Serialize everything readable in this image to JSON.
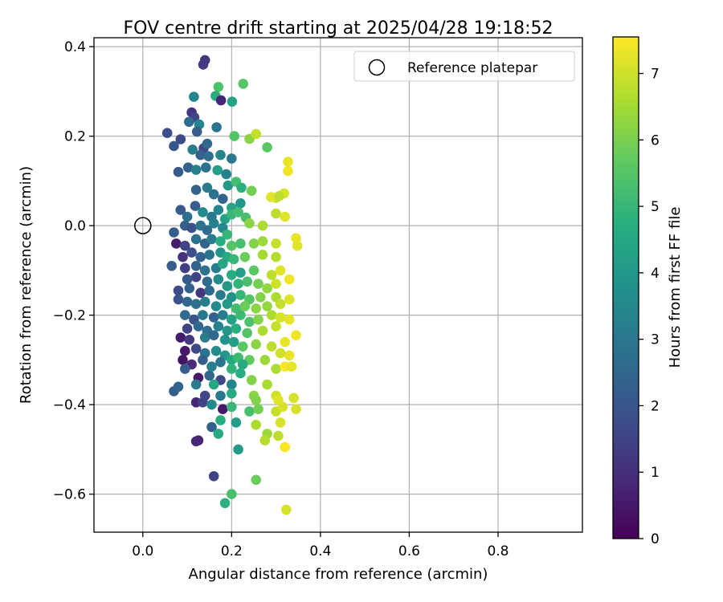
{
  "chart_data": {
    "type": "scatter",
    "title": "FOV centre drift starting at 2025/04/28 19:18:52",
    "xlabel": "Angular distance from reference (arcmin)",
    "ylabel": "Rotation from reference (arcmin)",
    "xlim": [
      -0.11,
      0.99
    ],
    "ylim": [
      -0.685,
      0.42
    ],
    "xticks": [
      0.0,
      0.2,
      0.4,
      0.6,
      0.8
    ],
    "xtick_labels": [
      "0.0",
      "0.2",
      "0.4",
      "0.6",
      "0.8"
    ],
    "yticks": [
      0.4,
      0.2,
      0.0,
      -0.2,
      -0.4,
      -0.6
    ],
    "ytick_labels": [
      "0.4",
      "0.2",
      "0.0",
      "−0.2",
      "−0.4",
      "−0.6"
    ],
    "grid": true,
    "legend": {
      "position": "top-right",
      "entries": [
        "Reference platepar"
      ]
    },
    "reference_point": {
      "x": 0.0,
      "y": 0.0,
      "label": "Reference platepar"
    },
    "colorbar": {
      "label": "Hours from first FF file",
      "colormap": "viridis",
      "range": [
        0,
        7.55
      ],
      "ticks": [
        0,
        1,
        2,
        3,
        4,
        5,
        6,
        7
      ],
      "tick_labels": [
        "0",
        "1",
        "2",
        "3",
        "4",
        "5",
        "6",
        "7"
      ]
    },
    "points": [
      [
        0.14,
        0.37,
        1.2
      ],
      [
        0.136,
        0.36,
        1.3
      ],
      [
        0.17,
        0.31,
        5.4
      ],
      [
        0.164,
        0.29,
        4.7
      ],
      [
        0.176,
        0.28,
        0.8
      ],
      [
        0.201,
        0.277,
        4.3
      ],
      [
        0.226,
        0.317,
        5.5
      ],
      [
        0.115,
        0.288,
        3.4
      ],
      [
        0.11,
        0.253,
        1.1
      ],
      [
        0.116,
        0.242,
        1.6
      ],
      [
        0.104,
        0.232,
        2.6
      ],
      [
        0.127,
        0.226,
        3.4
      ],
      [
        0.166,
        0.22,
        2.9
      ],
      [
        0.055,
        0.207,
        1.8
      ],
      [
        0.122,
        0.21,
        2.2
      ],
      [
        0.085,
        0.193,
        1.7
      ],
      [
        0.07,
        0.178,
        2.0
      ],
      [
        0.112,
        0.17,
        3.2
      ],
      [
        0.137,
        0.173,
        1.6
      ],
      [
        0.145,
        0.183,
        2.5
      ],
      [
        0.206,
        0.2,
        5.5
      ],
      [
        0.24,
        0.194,
        6.2
      ],
      [
        0.255,
        0.205,
        6.9
      ],
      [
        0.28,
        0.175,
        5.6
      ],
      [
        0.13,
        0.158,
        2.3
      ],
      [
        0.148,
        0.155,
        2.7
      ],
      [
        0.175,
        0.158,
        3.4
      ],
      [
        0.2,
        0.15,
        3.0
      ],
      [
        0.327,
        0.143,
        7.3
      ],
      [
        0.327,
        0.122,
        7.4
      ],
      [
        0.08,
        0.12,
        2.1
      ],
      [
        0.102,
        0.13,
        2.3
      ],
      [
        0.12,
        0.125,
        3.3
      ],
      [
        0.142,
        0.13,
        2.8
      ],
      [
        0.168,
        0.124,
        4.2
      ],
      [
        0.188,
        0.115,
        3.3
      ],
      [
        0.192,
        0.09,
        4.0
      ],
      [
        0.21,
        0.098,
        5.2
      ],
      [
        0.222,
        0.085,
        4.8
      ],
      [
        0.245,
        0.078,
        5.9
      ],
      [
        0.3,
        0.062,
        6.9
      ],
      [
        0.318,
        0.072,
        7.1
      ],
      [
        0.289,
        0.064,
        7.2
      ],
      [
        0.307,
        0.066,
        6.8
      ],
      [
        0.12,
        0.08,
        2.4
      ],
      [
        0.145,
        0.085,
        3.1
      ],
      [
        0.16,
        0.07,
        2.8
      ],
      [
        0.18,
        0.06,
        2.5
      ],
      [
        0.2,
        0.04,
        4.4
      ],
      [
        0.22,
        0.05,
        3.9
      ],
      [
        0.085,
        0.035,
        2.1
      ],
      [
        0.1,
        0.02,
        2.7
      ],
      [
        0.118,
        0.044,
        2.2
      ],
      [
        0.135,
        0.03,
        3.6
      ],
      [
        0.155,
        0.02,
        3.0
      ],
      [
        0.17,
        0.035,
        3.4
      ],
      [
        0.185,
        0.015,
        4.3
      ],
      [
        0.2,
        0.025,
        5.0
      ],
      [
        0.215,
        0.03,
        5.2
      ],
      [
        0.232,
        0.018,
        5.3
      ],
      [
        0.3,
        0.027,
        6.8
      ],
      [
        0.32,
        0.02,
        7.2
      ],
      [
        0.095,
        0.0,
        2.3
      ],
      [
        0.11,
        -0.005,
        1.9
      ],
      [
        0.13,
        0.0,
        2.9
      ],
      [
        0.145,
        -0.01,
        2.6
      ],
      [
        0.16,
        0.005,
        3.3
      ],
      [
        0.18,
        -0.005,
        3.5
      ],
      [
        0.24,
        0.005,
        6.2
      ],
      [
        0.27,
        0.0,
        6.6
      ],
      [
        0.07,
        -0.015,
        2.2
      ],
      [
        0.075,
        -0.04,
        0.6
      ],
      [
        0.095,
        -0.045,
        1.5
      ],
      [
        0.12,
        -0.03,
        2.8
      ],
      [
        0.14,
        -0.04,
        2.4
      ],
      [
        0.155,
        -0.03,
        3.1
      ],
      [
        0.175,
        -0.035,
        4.7
      ],
      [
        0.19,
        -0.02,
        5.0
      ],
      [
        0.2,
        -0.045,
        5.5
      ],
      [
        0.22,
        -0.04,
        5.3
      ],
      [
        0.25,
        -0.04,
        6.1
      ],
      [
        0.27,
        -0.035,
        6.4
      ],
      [
        0.3,
        -0.04,
        6.9
      ],
      [
        0.345,
        -0.028,
        7.3
      ],
      [
        0.348,
        -0.045,
        7.2
      ],
      [
        0.09,
        -0.07,
        1.1
      ],
      [
        0.11,
        -0.06,
        1.8
      ],
      [
        0.13,
        -0.07,
        2.4
      ],
      [
        0.15,
        -0.065,
        2.9
      ],
      [
        0.175,
        -0.06,
        3.9
      ],
      [
        0.19,
        -0.07,
        4.6
      ],
      [
        0.205,
        -0.075,
        5.0
      ],
      [
        0.23,
        -0.07,
        5.8
      ],
      [
        0.27,
        -0.065,
        6.5
      ],
      [
        0.3,
        -0.07,
        6.7
      ],
      [
        0.065,
        -0.09,
        2.2
      ],
      [
        0.095,
        -0.095,
        1.4
      ],
      [
        0.12,
        -0.09,
        2.4
      ],
      [
        0.14,
        -0.1,
        2.8
      ],
      [
        0.165,
        -0.095,
        3.2
      ],
      [
        0.18,
        -0.085,
        4.4
      ],
      [
        0.2,
        -0.11,
        4.7
      ],
      [
        0.22,
        -0.105,
        4.2
      ],
      [
        0.25,
        -0.1,
        5.6
      ],
      [
        0.29,
        -0.11,
        6.8
      ],
      [
        0.31,
        -0.1,
        7.2
      ],
      [
        0.33,
        -0.12,
        7.4
      ],
      [
        0.1,
        -0.12,
        2.1
      ],
      [
        0.12,
        -0.115,
        1.5
      ],
      [
        0.145,
        -0.125,
        2.6
      ],
      [
        0.17,
        -0.12,
        3.6
      ],
      [
        0.19,
        -0.135,
        4.0
      ],
      [
        0.215,
        -0.13,
        4.9
      ],
      [
        0.235,
        -0.125,
        5.3
      ],
      [
        0.26,
        -0.13,
        5.9
      ],
      [
        0.28,
        -0.14,
        6.3
      ],
      [
        0.3,
        -0.13,
        7.0
      ],
      [
        0.08,
        -0.145,
        1.7
      ],
      [
        0.105,
        -0.14,
        2.3
      ],
      [
        0.13,
        -0.15,
        1.2
      ],
      [
        0.15,
        -0.145,
        2.6
      ],
      [
        0.175,
        -0.155,
        3.1
      ],
      [
        0.2,
        -0.16,
        3.8
      ],
      [
        0.22,
        -0.155,
        5.0
      ],
      [
        0.24,
        -0.165,
        5.5
      ],
      [
        0.265,
        -0.16,
        6.1
      ],
      [
        0.3,
        -0.16,
        6.6
      ],
      [
        0.33,
        -0.165,
        7.2
      ],
      [
        0.08,
        -0.165,
        1.9
      ],
      [
        0.1,
        -0.17,
        2.5
      ],
      [
        0.12,
        -0.175,
        2.8
      ],
      [
        0.14,
        -0.17,
        3.2
      ],
      [
        0.165,
        -0.18,
        3.5
      ],
      [
        0.19,
        -0.175,
        4.1
      ],
      [
        0.21,
        -0.185,
        5.2
      ],
      [
        0.23,
        -0.18,
        5.8
      ],
      [
        0.255,
        -0.185,
        6.2
      ],
      [
        0.28,
        -0.18,
        6.3
      ],
      [
        0.31,
        -0.175,
        6.9
      ],
      [
        0.095,
        -0.2,
        2.6
      ],
      [
        0.115,
        -0.21,
        1.9
      ],
      [
        0.135,
        -0.2,
        3.0
      ],
      [
        0.16,
        -0.205,
        2.4
      ],
      [
        0.18,
        -0.2,
        3.2
      ],
      [
        0.2,
        -0.21,
        4.3
      ],
      [
        0.22,
        -0.2,
        5.1
      ],
      [
        0.24,
        -0.215,
        5.4
      ],
      [
        0.26,
        -0.21,
        6.1
      ],
      [
        0.29,
        -0.2,
        6.6
      ],
      [
        0.31,
        -0.205,
        7.1
      ],
      [
        0.33,
        -0.21,
        7.3
      ],
      [
        0.1,
        -0.23,
        1.5
      ],
      [
        0.125,
        -0.225,
        2.5
      ],
      [
        0.145,
        -0.235,
        2.7
      ],
      [
        0.17,
        -0.225,
        3.3
      ],
      [
        0.19,
        -0.235,
        4.0
      ],
      [
        0.21,
        -0.23,
        4.7
      ],
      [
        0.235,
        -0.24,
        5.5
      ],
      [
        0.27,
        -0.235,
        6.6
      ],
      [
        0.3,
        -0.225,
        6.9
      ],
      [
        0.345,
        -0.245,
        7.4
      ],
      [
        0.085,
        -0.25,
        0.6
      ],
      [
        0.105,
        -0.255,
        1.2
      ],
      [
        0.14,
        -0.25,
        3.1
      ],
      [
        0.16,
        -0.245,
        2.5
      ],
      [
        0.185,
        -0.255,
        3.8
      ],
      [
        0.205,
        -0.26,
        4.2
      ],
      [
        0.225,
        -0.27,
        5.6
      ],
      [
        0.255,
        -0.265,
        6.2
      ],
      [
        0.29,
        -0.27,
        6.8
      ],
      [
        0.32,
        -0.26,
        7.3
      ],
      [
        0.095,
        -0.28,
        0.5
      ],
      [
        0.12,
        -0.275,
        1.6
      ],
      [
        0.14,
        -0.285,
        2.9
      ],
      [
        0.165,
        -0.28,
        3.6
      ],
      [
        0.185,
        -0.29,
        4.0
      ],
      [
        0.2,
        -0.3,
        4.6
      ],
      [
        0.215,
        -0.295,
        5.1
      ],
      [
        0.24,
        -0.3,
        5.7
      ],
      [
        0.275,
        -0.3,
        6.4
      ],
      [
        0.31,
        -0.285,
        7.0
      ],
      [
        0.33,
        -0.29,
        7.3
      ],
      [
        0.09,
        -0.3,
        0.4
      ],
      [
        0.11,
        -0.31,
        0.9
      ],
      [
        0.135,
        -0.3,
        2.2
      ],
      [
        0.155,
        -0.315,
        3.2
      ],
      [
        0.175,
        -0.305,
        2.9
      ],
      [
        0.2,
        -0.32,
        4.9
      ],
      [
        0.225,
        -0.31,
        4.6
      ],
      [
        0.3,
        -0.32,
        6.6
      ],
      [
        0.32,
        -0.315,
        7.5
      ],
      [
        0.335,
        -0.315,
        7.3
      ],
      [
        0.095,
        -0.32,
        2.2
      ],
      [
        0.125,
        -0.34,
        0.5
      ],
      [
        0.15,
        -0.335,
        2.5
      ],
      [
        0.175,
        -0.345,
        1.6
      ],
      [
        0.2,
        -0.355,
        3.4
      ],
      [
        0.22,
        -0.33,
        4.7
      ],
      [
        0.245,
        -0.345,
        6.1
      ],
      [
        0.28,
        -0.355,
        6.6
      ],
      [
        0.07,
        -0.37,
        2.2
      ],
      [
        0.08,
        -0.36,
        2.5
      ],
      [
        0.12,
        -0.355,
        3.1
      ],
      [
        0.14,
        -0.38,
        1.6
      ],
      [
        0.16,
        -0.355,
        4.5
      ],
      [
        0.175,
        -0.38,
        3.0
      ],
      [
        0.2,
        -0.375,
        4.6
      ],
      [
        0.25,
        -0.38,
        6.2
      ],
      [
        0.255,
        -0.39,
        6.1
      ],
      [
        0.3,
        -0.38,
        7.0
      ],
      [
        0.305,
        -0.39,
        7.2
      ],
      [
        0.34,
        -0.385,
        7.1
      ],
      [
        0.12,
        -0.395,
        0.8
      ],
      [
        0.135,
        -0.395,
        1.5
      ],
      [
        0.155,
        -0.4,
        3.6
      ],
      [
        0.18,
        -0.41,
        0.5
      ],
      [
        0.2,
        -0.405,
        5.0
      ],
      [
        0.24,
        -0.415,
        5.3
      ],
      [
        0.26,
        -0.41,
        5.9
      ],
      [
        0.3,
        -0.415,
        6.9
      ],
      [
        0.315,
        -0.405,
        7.1
      ],
      [
        0.345,
        -0.41,
        7.1
      ],
      [
        0.175,
        -0.435,
        4.7
      ],
      [
        0.21,
        -0.44,
        4.2
      ],
      [
        0.255,
        -0.445,
        6.6
      ],
      [
        0.31,
        -0.44,
        7.1
      ],
      [
        0.155,
        -0.45,
        2.3
      ],
      [
        0.17,
        -0.465,
        4.6
      ],
      [
        0.28,
        -0.465,
        6.4
      ],
      [
        0.305,
        -0.47,
        6.8
      ],
      [
        0.125,
        -0.48,
        0.7
      ],
      [
        0.12,
        -0.482,
        0.8
      ],
      [
        0.275,
        -0.48,
        6.7
      ],
      [
        0.32,
        -0.495,
        7.5
      ],
      [
        0.215,
        -0.5,
        4.1
      ],
      [
        0.16,
        -0.56,
        1.5
      ],
      [
        0.255,
        -0.568,
        5.8
      ],
      [
        0.2,
        -0.6,
        5.3
      ],
      [
        0.185,
        -0.62,
        4.8
      ],
      [
        0.323,
        -0.635,
        7.1
      ]
    ]
  }
}
